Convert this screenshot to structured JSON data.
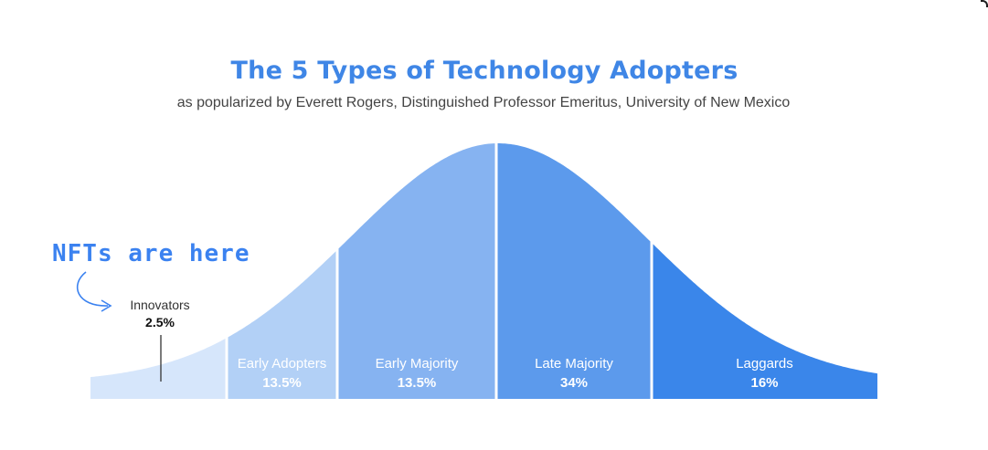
{
  "header": {
    "title": "The 5 Types of Technology Adopters",
    "subtitle": "as popularized by Everett Rogers, Distinguished Professor Emeritus, University of New Mexico"
  },
  "annotation": {
    "text": "NFTs are here",
    "color": "#3b82f0"
  },
  "chart_data": {
    "type": "area",
    "title": "The 5 Types of Technology Adopters",
    "subtitle": "as popularized by Everett Rogers, Distinguished Professor Emeritus, University of New Mexico",
    "distribution": "normal",
    "grid": false,
    "categories": [
      "Innovators",
      "Early Adopters",
      "Early Majority",
      "Late Majority",
      "Laggards"
    ],
    "series": [
      {
        "values": [
          2.5,
          13.5,
          13.5,
          34,
          16
        ]
      }
    ],
    "segments": [
      {
        "name": "Innovators",
        "value_label": "2.5%",
        "value": 2.5,
        "color": "#d6e6fb"
      },
      {
        "name": "Early Adopters",
        "value_label": "13.5%",
        "value": 13.5,
        "color": "#b2d0f6"
      },
      {
        "name": "Early Majority",
        "value_label": "13.5%",
        "value": 13.5,
        "color": "#86b3f1"
      },
      {
        "name": "Late Majority",
        "value_label": "34%",
        "value": 34,
        "color": "#5c9aec"
      },
      {
        "name": "Laggards",
        "value_label": "16%",
        "value": 16,
        "color": "#3a86ea"
      }
    ]
  }
}
